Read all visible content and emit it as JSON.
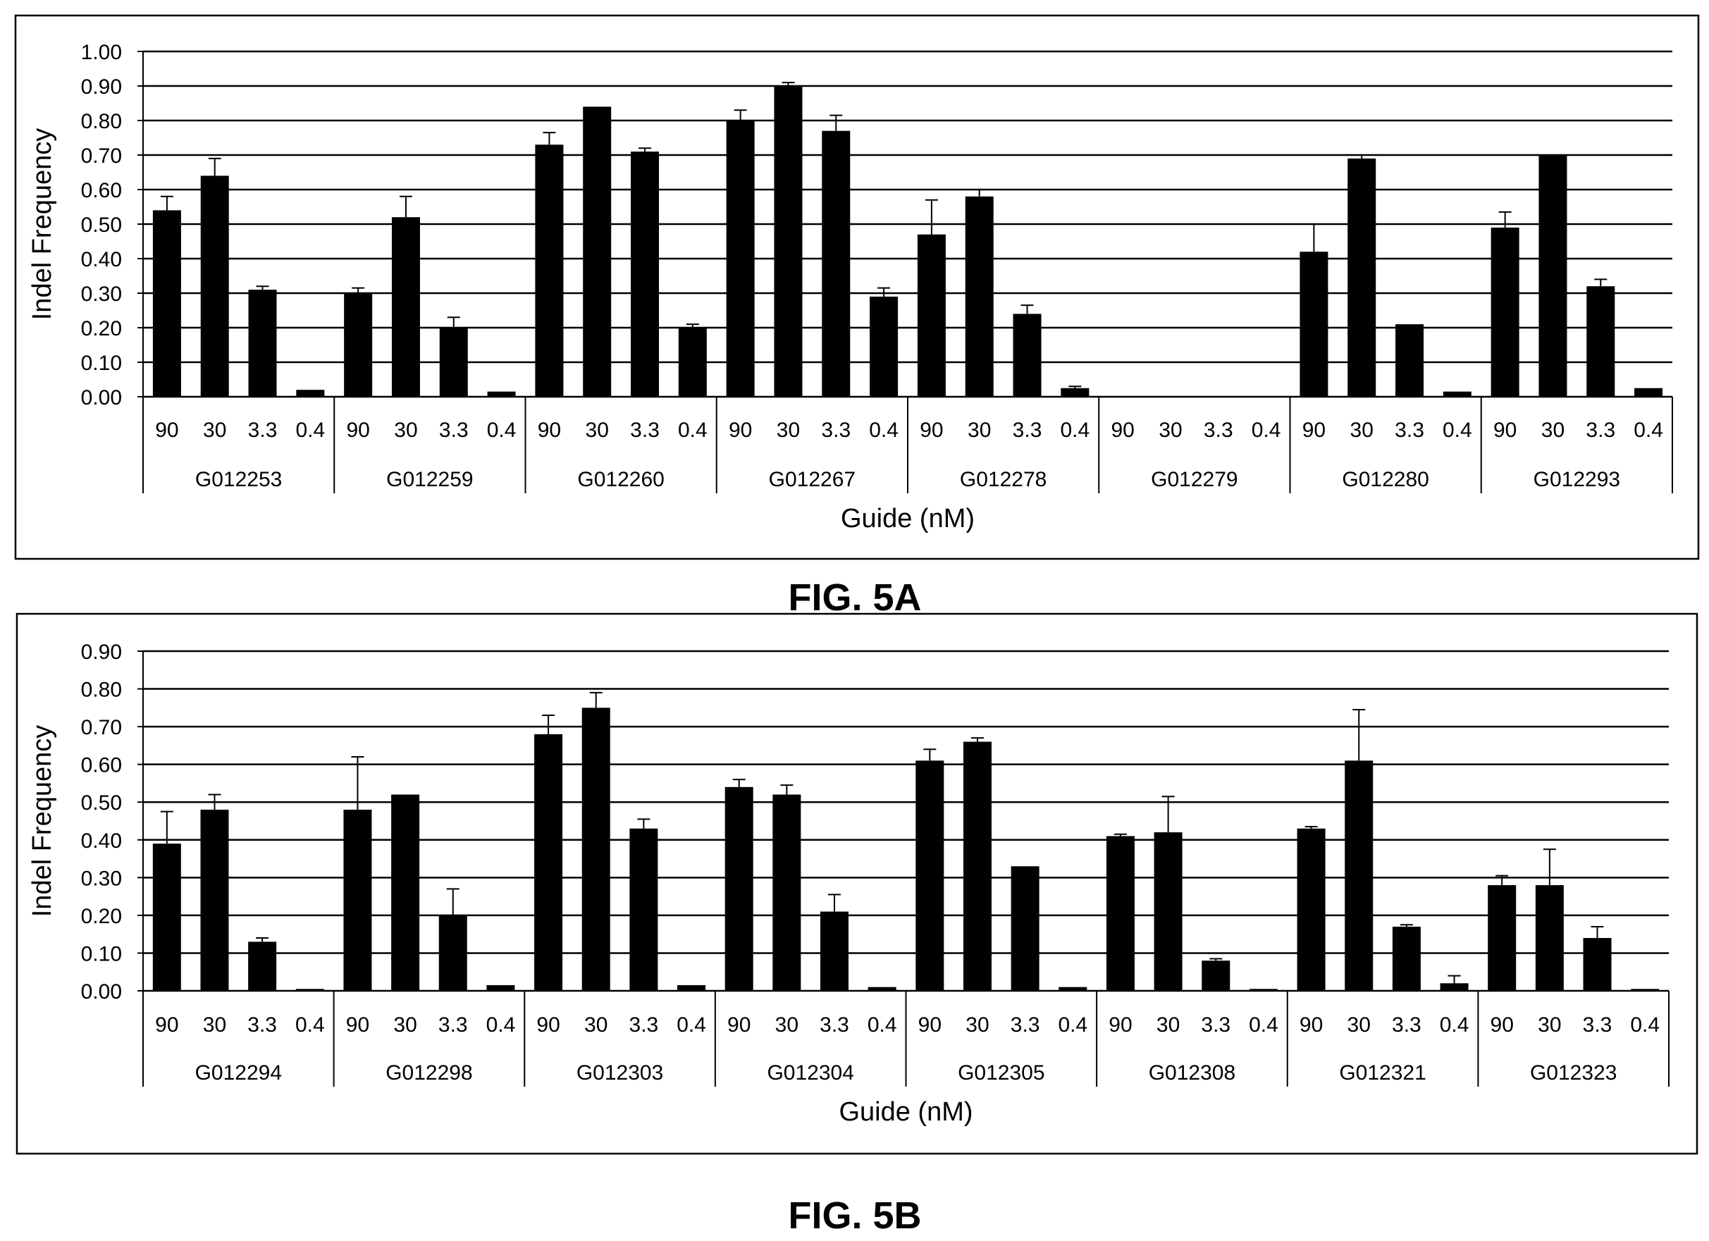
{
  "figures": [
    {
      "figure_label": "FIG. 5A"
    },
    {
      "figure_label": "FIG. 5B"
    }
  ],
  "chart_data": [
    {
      "type": "bar",
      "title": "",
      "ylabel": "Indel Frequency",
      "xlabel": "Guide (nM)",
      "ylim": [
        0,
        1.0
      ],
      "yticks": [
        "0.00",
        "0.10",
        "0.20",
        "0.30",
        "0.40",
        "0.50",
        "0.60",
        "0.70",
        "0.80",
        "0.90",
        "1.00"
      ],
      "grid": true,
      "concentrations": [
        "90",
        "30",
        "3.3",
        "0.4"
      ],
      "groups": [
        {
          "guide": "G012253",
          "values": [
            0.54,
            0.64,
            0.31,
            0.02
          ],
          "errors": [
            0.04,
            0.05,
            0.01,
            0.0
          ]
        },
        {
          "guide": "G012259",
          "values": [
            0.3,
            0.52,
            0.2,
            0.015
          ],
          "errors": [
            0.015,
            0.06,
            0.03,
            0.0
          ]
        },
        {
          "guide": "G012260",
          "values": [
            0.73,
            0.84,
            0.71,
            0.2
          ],
          "errors": [
            0.035,
            0.0,
            0.01,
            0.01
          ]
        },
        {
          "guide": "G012267",
          "values": [
            0.8,
            0.9,
            0.77,
            0.29
          ],
          "errors": [
            0.03,
            0.01,
            0.045,
            0.025
          ]
        },
        {
          "guide": "G012278",
          "values": [
            0.47,
            0.58,
            0.24,
            0.025
          ],
          "errors": [
            0.1,
            0.02,
            0.025,
            0.005
          ]
        },
        {
          "guide": "G012279",
          "values": [
            0.0,
            0.0,
            0.0,
            0.0
          ],
          "errors": [
            0.0,
            0.0,
            0.0,
            0.0
          ]
        },
        {
          "guide": "G012280",
          "values": [
            0.42,
            0.69,
            0.21,
            0.015
          ],
          "errors": [
            0.08,
            0.01,
            0.0,
            0.0
          ]
        },
        {
          "guide": "G012293",
          "values": [
            0.49,
            0.7,
            0.32,
            0.025
          ],
          "errors": [
            0.045,
            0.0,
            0.02,
            0.0
          ]
        }
      ]
    },
    {
      "type": "bar",
      "title": "",
      "ylabel": "Indel Frequency",
      "xlabel": "Guide (nM)",
      "ylim": [
        0,
        0.9
      ],
      "yticks": [
        "0.00",
        "0.10",
        "0.20",
        "0.30",
        "0.40",
        "0.50",
        "0.60",
        "0.70",
        "0.80",
        "0.90"
      ],
      "grid": true,
      "concentrations": [
        "90",
        "30",
        "3.3",
        "0.4"
      ],
      "groups": [
        {
          "guide": "G012294",
          "values": [
            0.39,
            0.48,
            0.13,
            0.005
          ],
          "errors": [
            0.085,
            0.04,
            0.01,
            0.0
          ]
        },
        {
          "guide": "G012298",
          "values": [
            0.48,
            0.52,
            0.2,
            0.015
          ],
          "errors": [
            0.14,
            0.0,
            0.07,
            0.0
          ]
        },
        {
          "guide": "G012303",
          "values": [
            0.68,
            0.75,
            0.43,
            0.015
          ],
          "errors": [
            0.05,
            0.04,
            0.025,
            0.0
          ]
        },
        {
          "guide": "G012304",
          "values": [
            0.54,
            0.52,
            0.21,
            0.01
          ],
          "errors": [
            0.02,
            0.025,
            0.045,
            0.0
          ]
        },
        {
          "guide": "G012305",
          "values": [
            0.61,
            0.66,
            0.33,
            0.01
          ],
          "errors": [
            0.03,
            0.01,
            0.0,
            0.0
          ]
        },
        {
          "guide": "G012308",
          "values": [
            0.41,
            0.42,
            0.08,
            0.005
          ],
          "errors": [
            0.005,
            0.095,
            0.005,
            0.0
          ]
        },
        {
          "guide": "G012321",
          "values": [
            0.43,
            0.61,
            0.17,
            0.02
          ],
          "errors": [
            0.005,
            0.135,
            0.005,
            0.02
          ]
        },
        {
          "guide": "G012323",
          "values": [
            0.28,
            0.28,
            0.14,
            0.005
          ],
          "errors": [
            0.025,
            0.095,
            0.03,
            0.0
          ]
        }
      ]
    }
  ]
}
